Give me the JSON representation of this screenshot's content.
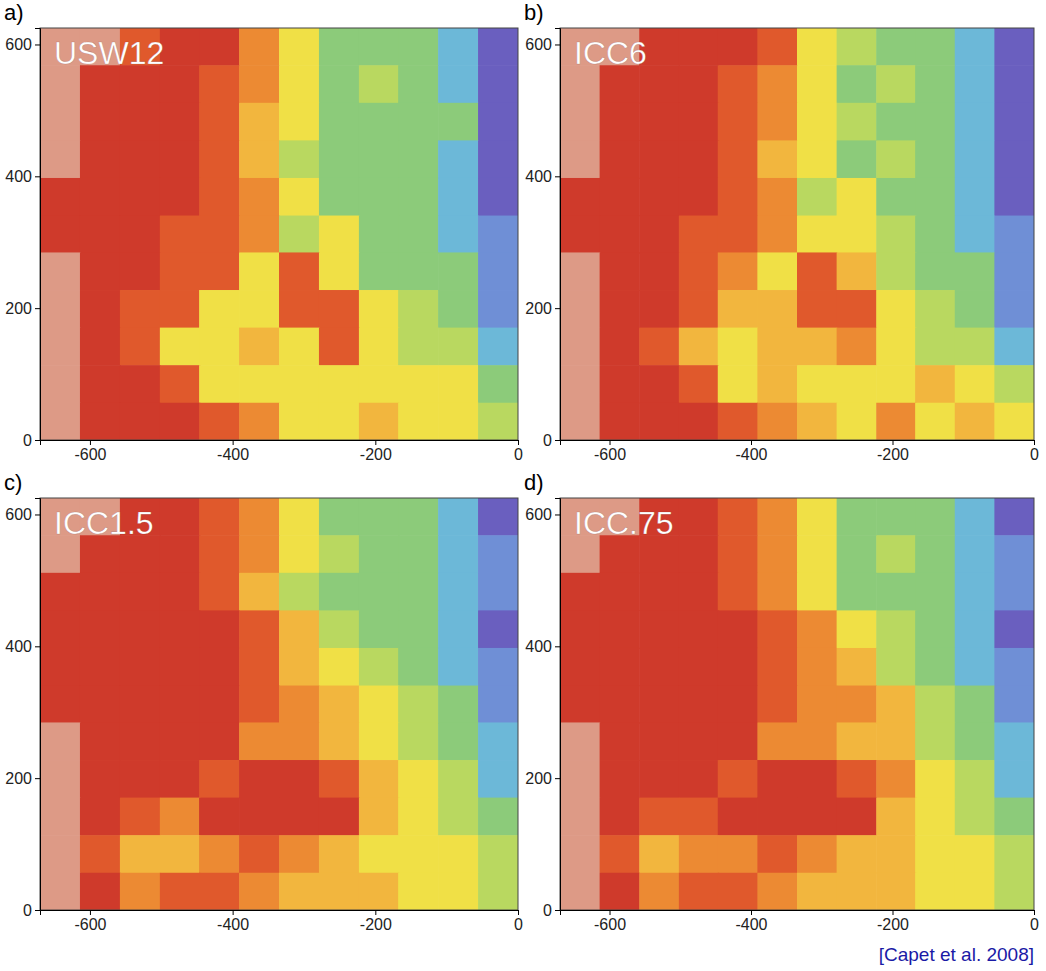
{
  "chart_data": [
    {
      "type": "heatmap",
      "panel_label": "a)",
      "title": "USW12",
      "xlim": [
        -670,
        0
      ],
      "xticks": [
        -600,
        -400,
        -200,
        0
      ],
      "ylim": [
        0,
        625
      ],
      "yticks": [
        0,
        200,
        400,
        600
      ],
      "x": [
        -642,
        -586,
        -530,
        -474,
        -419,
        -363,
        -307,
        -251,
        -195,
        -140,
        -84,
        -28
      ],
      "y": [
        597,
        540,
        483,
        426,
        369,
        312,
        256,
        199,
        142,
        85,
        28
      ],
      "cells": [
        [
          11,
          11,
          9,
          10,
          10,
          8,
          6,
          4,
          4,
          4,
          3,
          1
        ],
        [
          11,
          10,
          10,
          10,
          9,
          8,
          6,
          4,
          5,
          4,
          3,
          1
        ],
        [
          11,
          10,
          10,
          10,
          9,
          7,
          6,
          4,
          4,
          4,
          4,
          1
        ],
        [
          11,
          10,
          10,
          10,
          9,
          7,
          5,
          4,
          4,
          4,
          3,
          1
        ],
        [
          10,
          10,
          10,
          10,
          9,
          8,
          6,
          4,
          4,
          4,
          3,
          1
        ],
        [
          10,
          10,
          10,
          9,
          9,
          8,
          5,
          6,
          4,
          4,
          3,
          2
        ],
        [
          11,
          10,
          10,
          9,
          9,
          6,
          9,
          6,
          4,
          4,
          4,
          2
        ],
        [
          11,
          10,
          9,
          9,
          6,
          6,
          9,
          9,
          6,
          5,
          4,
          2
        ],
        [
          11,
          10,
          9,
          6,
          6,
          7,
          6,
          9,
          6,
          5,
          5,
          3
        ],
        [
          11,
          10,
          10,
          9,
          6,
          6,
          6,
          6,
          6,
          6,
          6,
          4
        ],
        [
          11,
          10,
          10,
          10,
          9,
          8,
          6,
          6,
          7,
          6,
          6,
          5
        ]
      ]
    },
    {
      "type": "heatmap",
      "panel_label": "b)",
      "title": "ICC6",
      "xlim": [
        -670,
        0
      ],
      "xticks": [
        -600,
        -400,
        -200,
        0
      ],
      "ylim": [
        0,
        625
      ],
      "yticks": [
        0,
        200,
        400,
        600
      ],
      "x": [
        -642,
        -586,
        -530,
        -474,
        -419,
        -363,
        -307,
        -251,
        -195,
        -140,
        -84,
        -28
      ],
      "y": [
        597,
        540,
        483,
        426,
        369,
        312,
        256,
        199,
        142,
        85,
        28
      ],
      "cells": [
        [
          11,
          11,
          10,
          10,
          10,
          9,
          6,
          5,
          4,
          4,
          3,
          1
        ],
        [
          11,
          10,
          10,
          10,
          9,
          8,
          6,
          4,
          5,
          4,
          3,
          1
        ],
        [
          11,
          10,
          10,
          10,
          9,
          8,
          6,
          5,
          4,
          4,
          3,
          1
        ],
        [
          11,
          10,
          10,
          10,
          9,
          7,
          6,
          4,
          5,
          4,
          3,
          1
        ],
        [
          10,
          10,
          10,
          10,
          9,
          8,
          5,
          6,
          4,
          4,
          3,
          1
        ],
        [
          10,
          10,
          10,
          9,
          9,
          8,
          6,
          6,
          5,
          4,
          3,
          2
        ],
        [
          11,
          10,
          10,
          9,
          8,
          6,
          9,
          7,
          5,
          4,
          4,
          2
        ],
        [
          11,
          10,
          10,
          9,
          7,
          7,
          9,
          9,
          6,
          5,
          4,
          2
        ],
        [
          11,
          10,
          9,
          7,
          6,
          7,
          7,
          8,
          6,
          5,
          5,
          3
        ],
        [
          11,
          10,
          10,
          9,
          6,
          7,
          6,
          6,
          6,
          7,
          6,
          5
        ],
        [
          11,
          10,
          10,
          10,
          9,
          8,
          7,
          6,
          8,
          6,
          7,
          6
        ]
      ]
    },
    {
      "type": "heatmap",
      "panel_label": "c)",
      "title": "ICC1.5",
      "xlim": [
        -670,
        0
      ],
      "xticks": [
        -600,
        -400,
        -200,
        0
      ],
      "ylim": [
        0,
        625
      ],
      "yticks": [
        0,
        200,
        400,
        600
      ],
      "x": [
        -642,
        -586,
        -530,
        -474,
        -419,
        -363,
        -307,
        -251,
        -195,
        -140,
        -84,
        -28
      ],
      "y": [
        597,
        540,
        483,
        426,
        369,
        312,
        256,
        199,
        142,
        85,
        28
      ],
      "cells": [
        [
          11,
          11,
          10,
          10,
          9,
          8,
          6,
          4,
          4,
          4,
          3,
          1
        ],
        [
          11,
          10,
          10,
          10,
          9,
          8,
          6,
          5,
          4,
          4,
          3,
          2
        ],
        [
          10,
          10,
          10,
          10,
          9,
          7,
          5,
          4,
          4,
          4,
          3,
          2
        ],
        [
          10,
          10,
          10,
          10,
          10,
          9,
          7,
          5,
          4,
          4,
          3,
          1
        ],
        [
          10,
          10,
          10,
          10,
          10,
          9,
          7,
          6,
          5,
          4,
          3,
          2
        ],
        [
          10,
          10,
          10,
          10,
          10,
          9,
          8,
          7,
          6,
          5,
          4,
          2
        ],
        [
          11,
          10,
          10,
          10,
          10,
          8,
          8,
          7,
          6,
          5,
          4,
          3
        ],
        [
          11,
          10,
          10,
          10,
          9,
          10,
          10,
          9,
          7,
          6,
          5,
          3
        ],
        [
          11,
          10,
          9,
          8,
          10,
          10,
          10,
          10,
          7,
          6,
          5,
          4
        ],
        [
          11,
          9,
          7,
          7,
          8,
          9,
          8,
          7,
          6,
          6,
          6,
          5
        ],
        [
          11,
          10,
          8,
          9,
          9,
          8,
          7,
          7,
          7,
          6,
          6,
          5
        ]
      ]
    },
    {
      "type": "heatmap",
      "panel_label": "d)",
      "title": "ICC.75",
      "xlim": [
        -670,
        0
      ],
      "xticks": [
        -600,
        -400,
        -200,
        0
      ],
      "ylim": [
        0,
        625
      ],
      "yticks": [
        0,
        200,
        400,
        600
      ],
      "x": [
        -642,
        -586,
        -530,
        -474,
        -419,
        -363,
        -307,
        -251,
        -195,
        -140,
        -84,
        -28
      ],
      "y": [
        597,
        540,
        483,
        426,
        369,
        312,
        256,
        199,
        142,
        85,
        28
      ],
      "cells": [
        [
          11,
          11,
          10,
          10,
          9,
          8,
          6,
          4,
          4,
          4,
          3,
          1
        ],
        [
          11,
          10,
          10,
          10,
          9,
          8,
          6,
          4,
          5,
          4,
          3,
          2
        ],
        [
          10,
          10,
          10,
          10,
          9,
          8,
          6,
          4,
          4,
          4,
          3,
          2
        ],
        [
          10,
          10,
          10,
          10,
          10,
          9,
          8,
          6,
          5,
          4,
          3,
          1
        ],
        [
          10,
          10,
          10,
          10,
          10,
          9,
          8,
          7,
          5,
          4,
          3,
          2
        ],
        [
          10,
          10,
          10,
          10,
          10,
          9,
          8,
          8,
          7,
          5,
          4,
          2
        ],
        [
          11,
          10,
          10,
          10,
          10,
          8,
          8,
          7,
          7,
          5,
          4,
          3
        ],
        [
          11,
          10,
          10,
          10,
          9,
          10,
          10,
          9,
          8,
          6,
          5,
          3
        ],
        [
          11,
          10,
          9,
          9,
          10,
          10,
          10,
          10,
          7,
          6,
          5,
          4
        ],
        [
          11,
          9,
          7,
          8,
          8,
          9,
          8,
          7,
          7,
          6,
          6,
          5
        ],
        [
          11,
          10,
          8,
          9,
          9,
          8,
          7,
          7,
          7,
          6,
          6,
          5
        ]
      ],
      "annotations": [
        "[Capet et al. 2008]"
      ]
    }
  ]
}
